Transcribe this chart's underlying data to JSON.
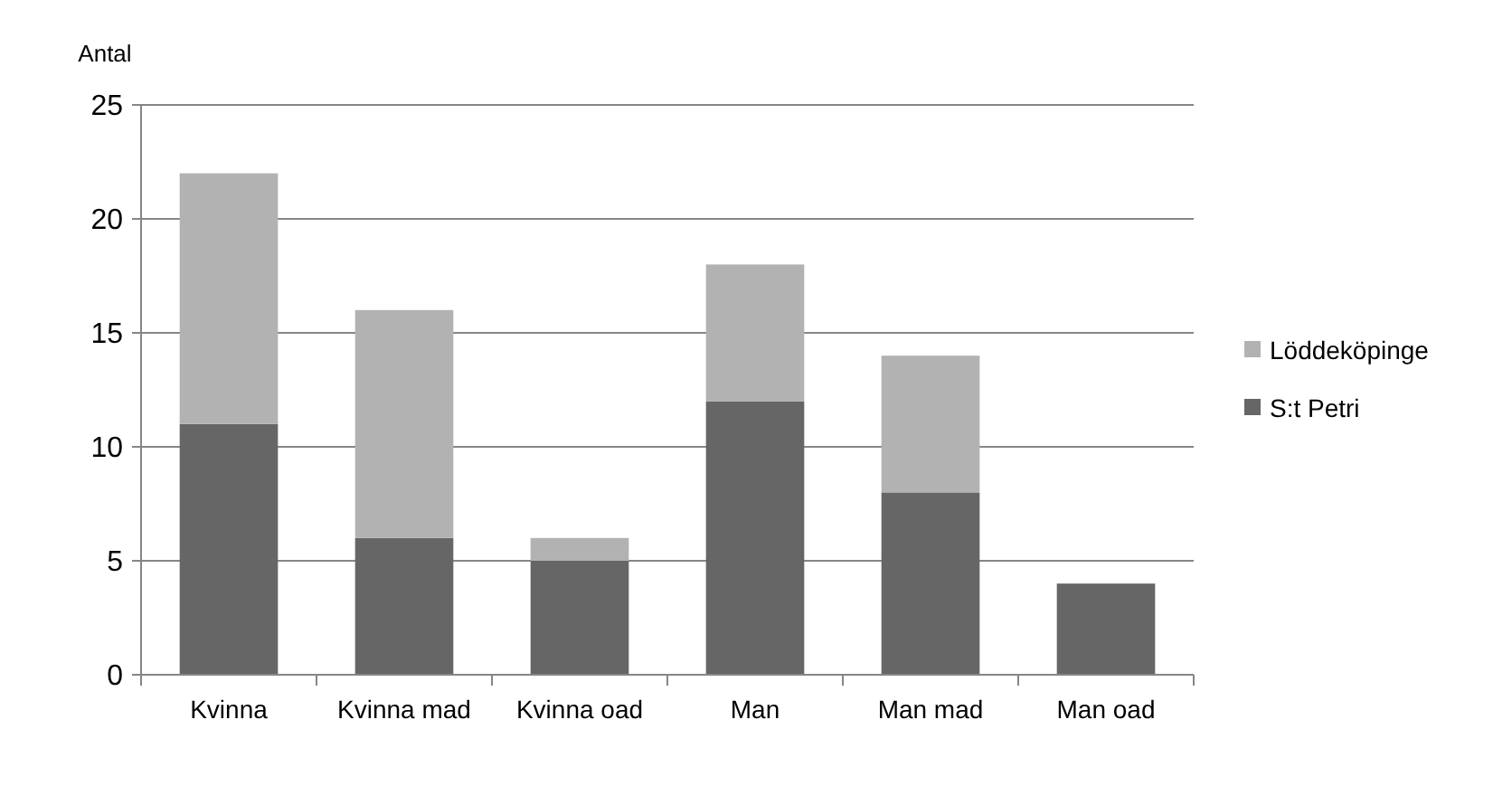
{
  "chart_data": {
    "type": "bar",
    "stacked": true,
    "ylabel": "Antal",
    "categories": [
      "Kvinna",
      "Kvinna mad",
      "Kvinna oad",
      "Man",
      "Man mad",
      "Man oad"
    ],
    "series": [
      {
        "name": "S:t Petri",
        "color": "#666666",
        "values": [
          11,
          6,
          5,
          12,
          8,
          4
        ]
      },
      {
        "name": "Löddeköpinge",
        "color": "#b2b2b2",
        "values": [
          11,
          10,
          1,
          6,
          6,
          0
        ]
      }
    ],
    "ylim": [
      0,
      25
    ],
    "yticks": [
      0,
      5,
      10,
      15,
      20,
      25
    ],
    "grid": "y",
    "legend": "right"
  }
}
